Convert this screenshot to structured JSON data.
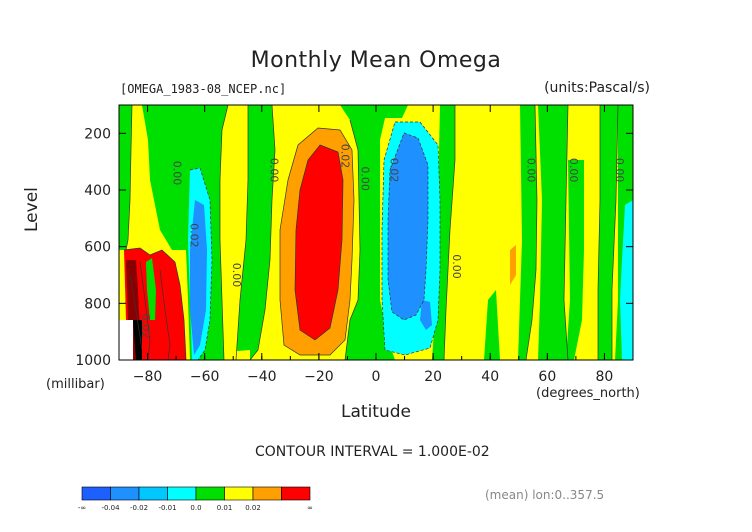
{
  "chart_data": {
    "type": "contour",
    "title": "Monthly Mean Omega",
    "file_label": "[OMEGA_1983-08_NCEP.nc]",
    "units_label": "(units:Pascal/s)",
    "ylabel": "Level",
    "ylabel_units": "(millibar)",
    "xlabel": "Latitude",
    "xlabel_units": "(degrees_north)",
    "contour_interval": "CONTOUR INTERVAL = 1.000E-02",
    "averaging_note": "(mean) lon:0..357.5",
    "xlim": [
      -90,
      90
    ],
    "ylim": [
      1000,
      100
    ],
    "x_ticks": [
      -80,
      -60,
      -40,
      -20,
      0,
      20,
      40,
      60,
      80
    ],
    "y_ticks": [
      200,
      400,
      600,
      800,
      1000
    ],
    "contour_labels": [
      {
        "text": "0.00",
        "x": -71,
        "y": 340,
        "color": "#444"
      },
      {
        "text": "0.02",
        "x": -65,
        "y": 560,
        "color": "#444"
      },
      {
        "text": "0.00",
        "x": -50,
        "y": 700,
        "color": "#444"
      },
      {
        "text": "0.00",
        "x": -37,
        "y": 330,
        "color": "#444"
      },
      {
        "text": "0.02",
        "x": -12,
        "y": 280,
        "color": "#444"
      },
      {
        "text": "0.00",
        "x": -5,
        "y": 360,
        "color": "#444"
      },
      {
        "text": "0.02",
        "x": 5,
        "y": 330,
        "color": "#444"
      },
      {
        "text": "0.00",
        "x": 27,
        "y": 670,
        "color": "#444"
      },
      {
        "text": "0.00",
        "x": 53,
        "y": 330,
        "color": "#444"
      },
      {
        "text": "0.00",
        "x": 68,
        "y": 330,
        "color": "#444"
      },
      {
        "text": "0.00",
        "x": 84,
        "y": 330,
        "color": "#444"
      },
      {
        "text": "0.02",
        "x": -82,
        "y": 880,
        "color": "#444"
      }
    ],
    "levels": [
      {
        "label": "-∞",
        "color": "#1e5fff"
      },
      {
        "label": "-0.04",
        "color": "#1e90ff"
      },
      {
        "label": "-0.02",
        "color": "#00c8ff"
      },
      {
        "label": "-0.01",
        "color": "#00ffff"
      },
      {
        "label": "0.0",
        "color": "#00e000"
      },
      {
        "label": "0.01",
        "color": "#ffff00"
      },
      {
        "label": "0.02",
        "color": "#ffa000"
      },
      {
        "label": "∞",
        "color": "#ff0000"
      }
    ],
    "regions": [
      {
        "name": "positive-band-sh",
        "color": "#ffa000",
        "cx": -18,
        "cy": 520,
        "rx": 11,
        "ry": 390
      },
      {
        "name": "positive-core-sh",
        "color": "#ff0000",
        "cx": -18,
        "cy": 540,
        "rx": 8,
        "ry": 330
      },
      {
        "name": "negative-band-nh",
        "color": "#00ffff",
        "cx": 12,
        "cy": 560,
        "rx": 11,
        "ry": 400
      },
      {
        "name": "negative-core-nh",
        "color": "#1e90ff",
        "cx": 10,
        "cy": 560,
        "rx": 7,
        "ry": 330
      }
    ]
  }
}
